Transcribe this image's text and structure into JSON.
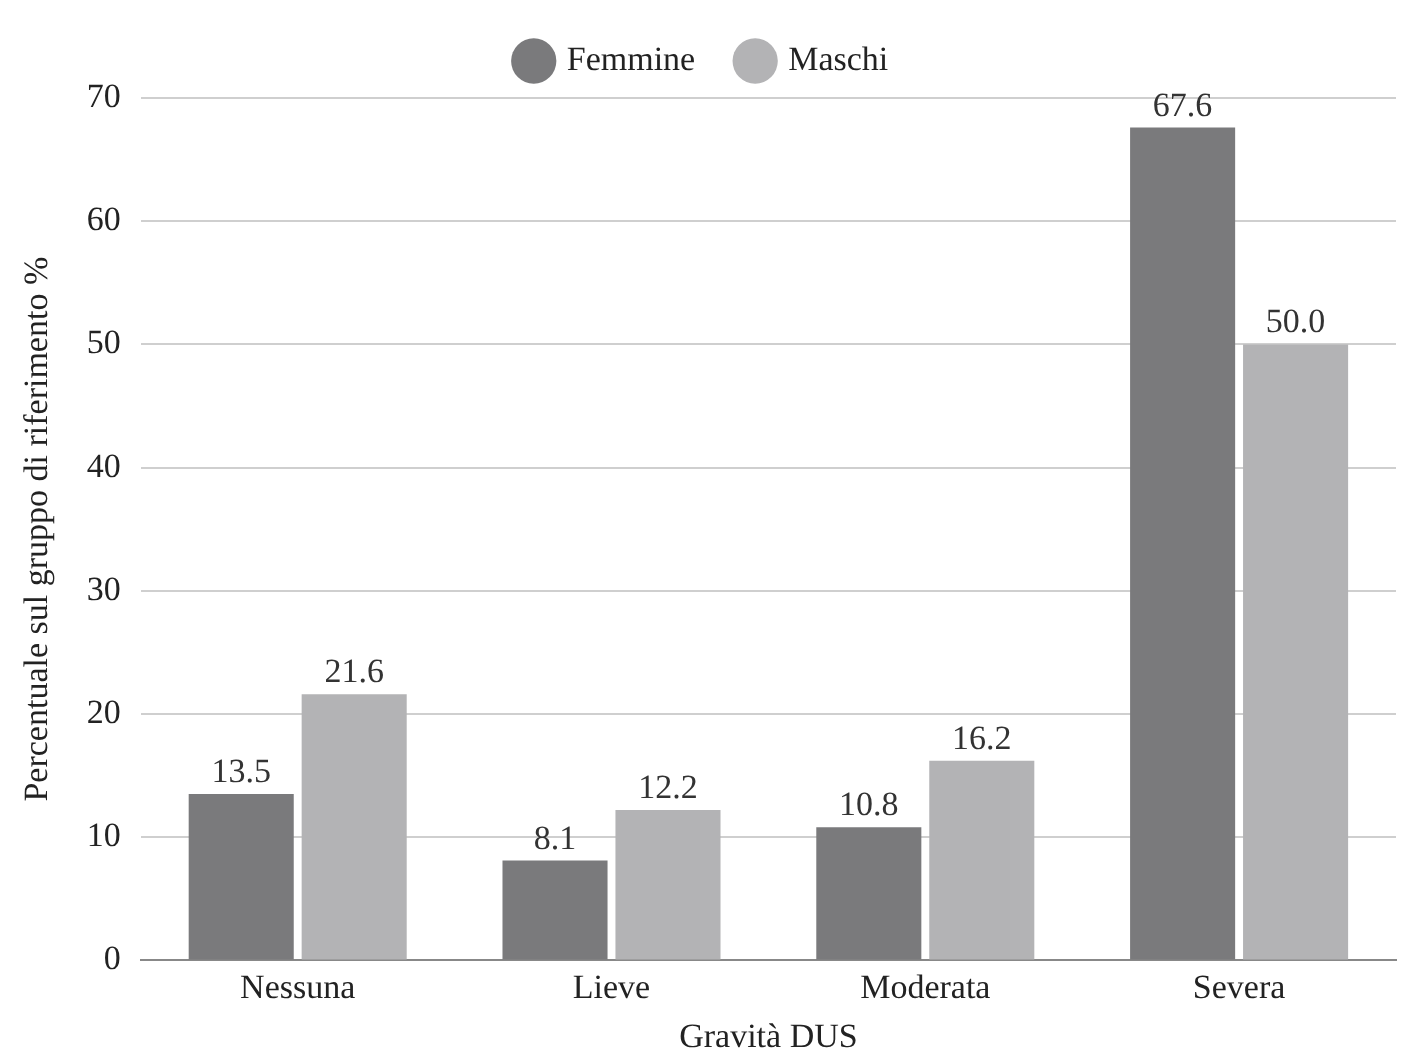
{
  "chart_data": {
    "type": "bar",
    "xlabel": "Gravità DUS",
    "ylabel": "Percentuale sul gruppo di riferimento %",
    "categories": [
      "Nessuna",
      "Lieve",
      "Moderata",
      "Severa"
    ],
    "series": [
      {
        "name": "Femmine",
        "color": "#7a7a7c",
        "values": [
          13.5,
          8.1,
          10.8,
          67.6
        ],
        "value_labels": [
          "13.5",
          "8.1",
          "10.8",
          "67.6"
        ]
      },
      {
        "name": "Maschi",
        "color": "#b3b3b5",
        "values": [
          21.6,
          12.2,
          16.2,
          50.0
        ],
        "value_labels": [
          "21.6",
          "12.2",
          "16.2",
          "50.0"
        ]
      }
    ],
    "ylim": [
      0,
      70
    ],
    "yticks": [
      0,
      10,
      20,
      30,
      40,
      50,
      60,
      70
    ],
    "grid": "y",
    "legend": "top"
  }
}
